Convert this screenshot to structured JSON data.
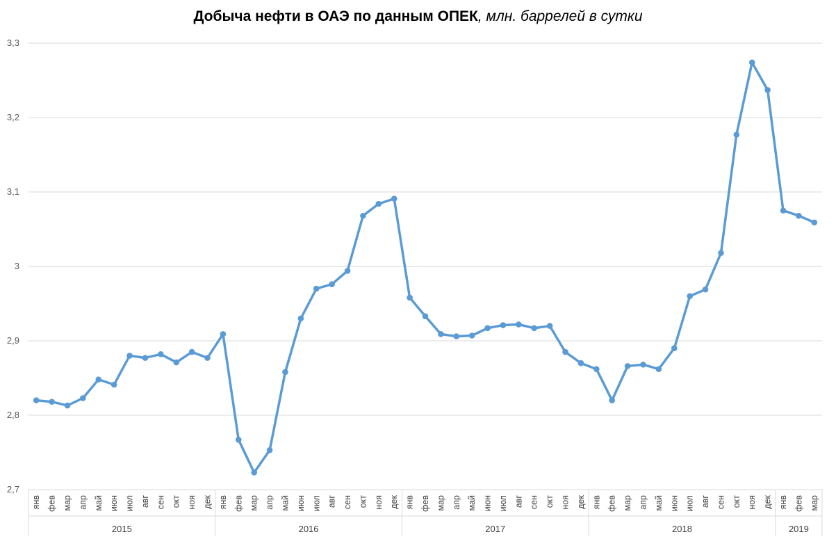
{
  "title": {
    "main": "Добыча нефти в ОАЭ по данным ОПЕК",
    "unit": ", млн. баррелей в сутки"
  },
  "colors": {
    "line": "#5B9BD5",
    "grid": "#D9D9D9",
    "axis_text": "#595959"
  },
  "chart_data": {
    "type": "line",
    "title": "Добыча нефти в ОАЭ по данным ОПЕК, млн. баррелей в сутки",
    "ylim": [
      2.7,
      3.3
    ],
    "y_ticks": [
      "2,7",
      "2,8",
      "2,9",
      "3",
      "3,1",
      "3,2",
      "3,3"
    ],
    "y_tick_values": [
      2.7,
      2.8,
      2.9,
      3.0,
      3.1,
      3.2,
      3.3
    ],
    "grid": true,
    "legend": "none",
    "year_groups": [
      {
        "year": "2015",
        "months": 12
      },
      {
        "year": "2016",
        "months": 12
      },
      {
        "year": "2017",
        "months": 12
      },
      {
        "year": "2018",
        "months": 12
      },
      {
        "year": "2019",
        "months": 3
      }
    ],
    "categories": [
      "янв",
      "фев",
      "мар",
      "апр",
      "май",
      "июн",
      "июл",
      "авг",
      "сен",
      "окт",
      "ноя",
      "дек",
      "янв",
      "фев",
      "мар",
      "апр",
      "май",
      "июн",
      "июл",
      "авг",
      "сен",
      "окт",
      "ноя",
      "дек",
      "янв",
      "фев",
      "мар",
      "апр",
      "май",
      "июн",
      "июл",
      "авг",
      "сен",
      "окт",
      "ноя",
      "дек",
      "янв",
      "фев",
      "мар",
      "апр",
      "май",
      "июн",
      "июл",
      "авг",
      "сен",
      "окт",
      "ноя",
      "дек",
      "янв",
      "фев",
      "мар"
    ],
    "series": [
      {
        "values": [
          2.82,
          2.818,
          2.813,
          2.823,
          2.848,
          2.841,
          2.88,
          2.877,
          2.882,
          2.871,
          2.885,
          2.877,
          2.909,
          2.767,
          2.723,
          2.753,
          2.858,
          2.93,
          2.97,
          2.976,
          2.994,
          3.068,
          3.084,
          3.091,
          2.958,
          2.933,
          2.909,
          2.906,
          2.907,
          2.917,
          2.921,
          2.922,
          2.917,
          2.92,
          2.885,
          2.87,
          2.862,
          2.82,
          2.866,
          2.868,
          2.862,
          2.89,
          2.96,
          2.969,
          3.018,
          3.177,
          3.274,
          3.237,
          3.075,
          3.068,
          3.059
        ]
      }
    ]
  }
}
